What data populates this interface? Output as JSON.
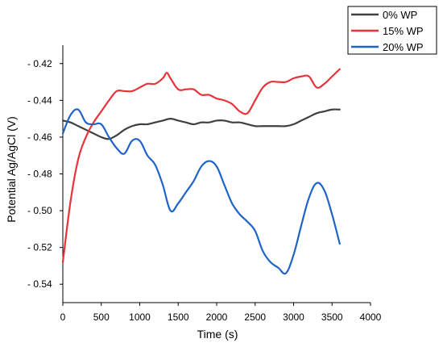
{
  "chart_data": {
    "type": "line",
    "title": "",
    "xlabel": "Time (s)",
    "ylabel": "Potential Ag/AgCl (V)",
    "xlim": [
      0,
      4000
    ],
    "ylim": [
      -0.55,
      -0.41
    ],
    "x_ticks": [
      0,
      500,
      1000,
      1500,
      2000,
      2500,
      3000,
      3500,
      4000
    ],
    "x_tick_labels": [
      "0",
      "500",
      "1000",
      "1500",
      "2000",
      "2500",
      "3000",
      "3500",
      "4000"
    ],
    "y_ticks": [
      -0.42,
      -0.44,
      -0.46,
      -0.48,
      -0.5,
      -0.52,
      -0.54
    ],
    "y_tick_labels": [
      "- 0.42",
      "- 0.44",
      "- 0.46",
      "- 0.48",
      "- 0.50",
      "- 0.52",
      "- 0.54"
    ],
    "grid": false,
    "legend_position": "top-right",
    "series": [
      {
        "name": "0% WP",
        "color": "#404040",
        "x": [
          0,
          100,
          200,
          300,
          400,
          500,
          600,
          700,
          800,
          900,
          1000,
          1100,
          1200,
          1300,
          1400,
          1500,
          1600,
          1700,
          1800,
          1900,
          2000,
          2100,
          2200,
          2300,
          2400,
          2500,
          2600,
          2700,
          2800,
          2900,
          3000,
          3100,
          3200,
          3300,
          3400,
          3500,
          3600
        ],
        "y": [
          -0.451,
          -0.452,
          -0.454,
          -0.456,
          -0.458,
          -0.46,
          -0.461,
          -0.459,
          -0.456,
          -0.454,
          -0.453,
          -0.453,
          -0.452,
          -0.451,
          -0.45,
          -0.451,
          -0.452,
          -0.453,
          -0.452,
          -0.452,
          -0.451,
          -0.451,
          -0.452,
          -0.452,
          -0.453,
          -0.454,
          -0.454,
          -0.454,
          -0.454,
          -0.454,
          -0.453,
          -0.451,
          -0.449,
          -0.447,
          -0.446,
          -0.445,
          -0.445
        ]
      },
      {
        "name": "15% WP",
        "color": "#e8333a",
        "x": [
          0,
          100,
          200,
          300,
          400,
          500,
          600,
          700,
          800,
          900,
          1000,
          1100,
          1200,
          1300,
          1350,
          1400,
          1500,
          1600,
          1700,
          1800,
          1900,
          2000,
          2100,
          2200,
          2300,
          2400,
          2500,
          2600,
          2700,
          2800,
          2900,
          3000,
          3100,
          3200,
          3300,
          3400,
          3500,
          3600
        ],
        "y": [
          -0.528,
          -0.495,
          -0.472,
          -0.46,
          -0.452,
          -0.446,
          -0.44,
          -0.435,
          -0.435,
          -0.435,
          -0.433,
          -0.431,
          -0.431,
          -0.428,
          -0.425,
          -0.428,
          -0.434,
          -0.434,
          -0.434,
          -0.437,
          -0.437,
          -0.439,
          -0.44,
          -0.442,
          -0.446,
          -0.447,
          -0.44,
          -0.433,
          -0.43,
          -0.43,
          -0.43,
          -0.428,
          -0.427,
          -0.427,
          -0.433,
          -0.431,
          -0.427,
          -0.423
        ]
      },
      {
        "name": "20% WP",
        "color": "#1e64c8",
        "x": [
          0,
          100,
          200,
          300,
          400,
          500,
          600,
          700,
          800,
          900,
          1000,
          1100,
          1200,
          1300,
          1400,
          1500,
          1600,
          1700,
          1800,
          1900,
          2000,
          2100,
          2200,
          2300,
          2400,
          2500,
          2600,
          2700,
          2800,
          2900,
          3000,
          3100,
          3200,
          3300,
          3400,
          3500,
          3600
        ],
        "y": [
          -0.458,
          -0.448,
          -0.445,
          -0.452,
          -0.453,
          -0.453,
          -0.46,
          -0.466,
          -0.469,
          -0.462,
          -0.462,
          -0.47,
          -0.475,
          -0.486,
          -0.5,
          -0.496,
          -0.49,
          -0.484,
          -0.476,
          -0.473,
          -0.476,
          -0.486,
          -0.496,
          -0.502,
          -0.506,
          -0.511,
          -0.522,
          -0.528,
          -0.531,
          -0.534,
          -0.524,
          -0.508,
          -0.493,
          -0.485,
          -0.489,
          -0.502,
          -0.518
        ]
      }
    ]
  }
}
